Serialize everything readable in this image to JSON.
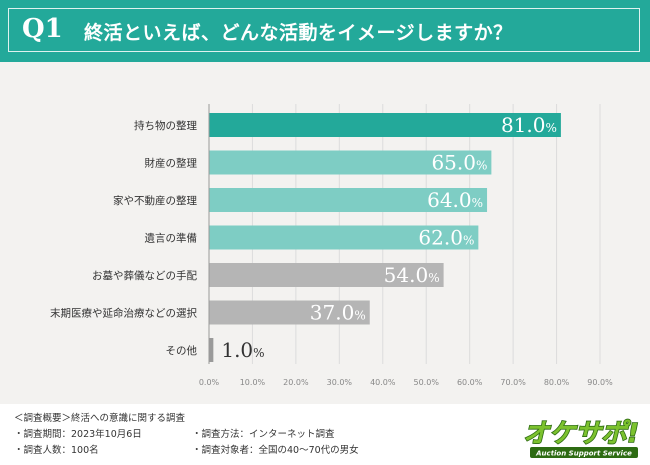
{
  "header": {
    "q_label": "Q1",
    "question": "終活といえば、どんな活動をイメージしますか？",
    "bg_color": "#23a99a"
  },
  "chart_data": {
    "type": "bar",
    "orientation": "horizontal",
    "categories": [
      "持ち物の整理",
      "財産の整理",
      "家や不動産の整理",
      "遺言の準備",
      "お墓や葬儀などの手配",
      "末期医療や延命治療などの選択",
      "その他"
    ],
    "values": [
      81.0,
      65.0,
      64.0,
      62.0,
      54.0,
      37.0,
      1.0
    ],
    "value_labels": [
      "81.0",
      "65.0",
      "64.0",
      "62.0",
      "54.0",
      "37.0",
      "1.0"
    ],
    "unit": "%",
    "bar_colors": [
      "#23a99a",
      "#7ecdc4",
      "#7ecdc4",
      "#7ecdc4",
      "#b5b5b5",
      "#b5b5b5",
      "#9a9a9a"
    ],
    "xlim": [
      0,
      90
    ],
    "x_ticks": [
      "0.0%",
      "10.0%",
      "20.0%",
      "30.0%",
      "40.0%",
      "50.0%",
      "60.0%",
      "70.0%",
      "80.0%",
      "90.0%"
    ],
    "grid": true
  },
  "footer": {
    "title": "＜調査概要＞終活への意識に関する調査",
    "left_lines": [
      "・調査期間：2023年10月6日",
      "・調査人数：100名"
    ],
    "right_lines": [
      "・調査方法：インターネット調査",
      "・調査対象者：全国の40～70代の男女"
    ]
  },
  "logo": {
    "main_text": "オケサポ!",
    "sub_text": "Auction Support Service",
    "colors": [
      "#7cc22e",
      "#2d6b12"
    ]
  }
}
